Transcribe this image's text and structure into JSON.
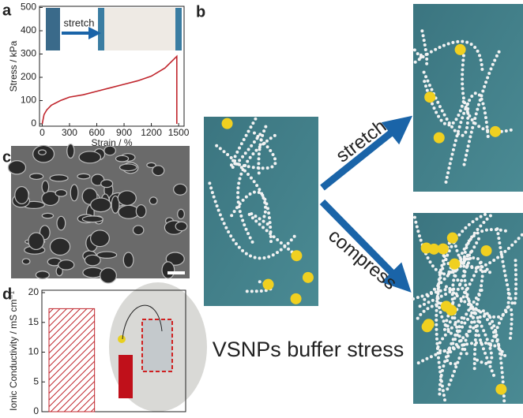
{
  "chart_data": [
    {
      "type": "line",
      "title": "a",
      "xlabel": "Strain / %",
      "ylabel": "Stress / kPa",
      "inset_label": "stretch",
      "x": [
        0,
        20,
        50,
        100,
        200,
        300,
        450,
        600,
        750,
        900,
        1050,
        1200,
        1350,
        1480,
        1480
      ],
      "values": [
        0,
        40,
        60,
        80,
        100,
        115,
        125,
        140,
        155,
        170,
        185,
        205,
        240,
        290,
        0
      ],
      "color": "#c0262d",
      "xlim": [
        -30,
        1560
      ],
      "xticks": [
        0,
        300,
        600,
        900,
        1200,
        1500
      ],
      "ylim": [
        -10,
        505
      ],
      "yticks": [
        0,
        100,
        200,
        300,
        400,
        500
      ]
    },
    {
      "type": "bar",
      "title": "d",
      "ylabel": "Ionic Conductivity / mS cm⁻¹",
      "categories": [
        null
      ],
      "values": [
        17.3
      ],
      "color": "#c0262d",
      "ylim": [
        0,
        20.4
      ],
      "yticks": [
        0,
        5,
        10,
        15,
        20
      ]
    }
  ],
  "panels": {
    "c": "c",
    "b": "b",
    "stretch": "stretch",
    "compress": "compress",
    "caption": "VSNPs buffer stress"
  }
}
